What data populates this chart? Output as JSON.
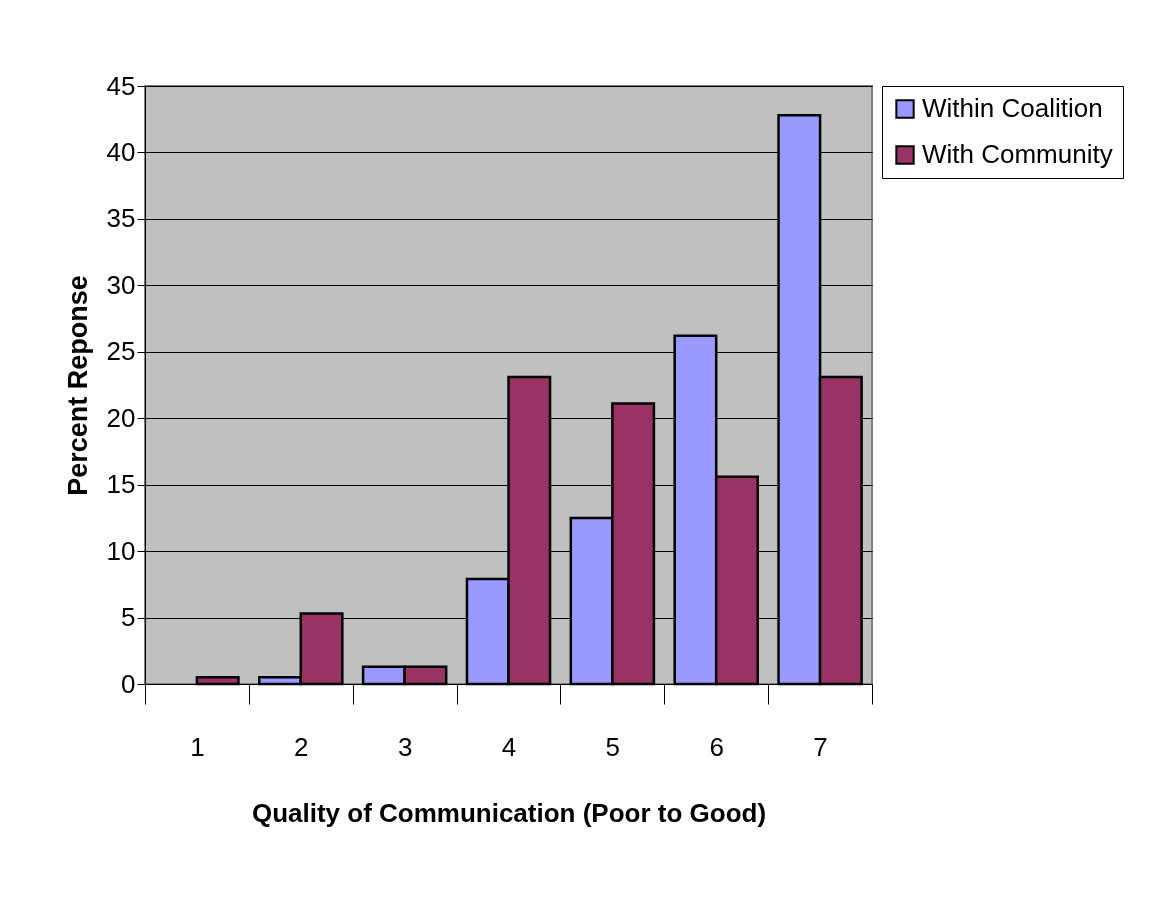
{
  "chart_data": {
    "type": "bar",
    "xlabel": "Quality of Communication (Poor to Good)",
    "ylabel": "Percent Reponse",
    "categories": [
      "1",
      "2",
      "3",
      "4",
      "5",
      "6",
      "7"
    ],
    "series": [
      {
        "name": "Within Coalition",
        "color": "#9999ff",
        "values": [
          null,
          0.5,
          1.3,
          7.9,
          12.5,
          26.2,
          42.8
        ]
      },
      {
        "name": "With Community",
        "color": "#993366",
        "values": [
          0.5,
          5.3,
          1.3,
          23.1,
          21.1,
          15.6,
          23.1
        ]
      }
    ],
    "ylim": [
      0,
      45
    ],
    "yticks": [
      0,
      5,
      10,
      15,
      20,
      25,
      30,
      35,
      40,
      45
    ],
    "grid": "y",
    "legend": "right"
  }
}
